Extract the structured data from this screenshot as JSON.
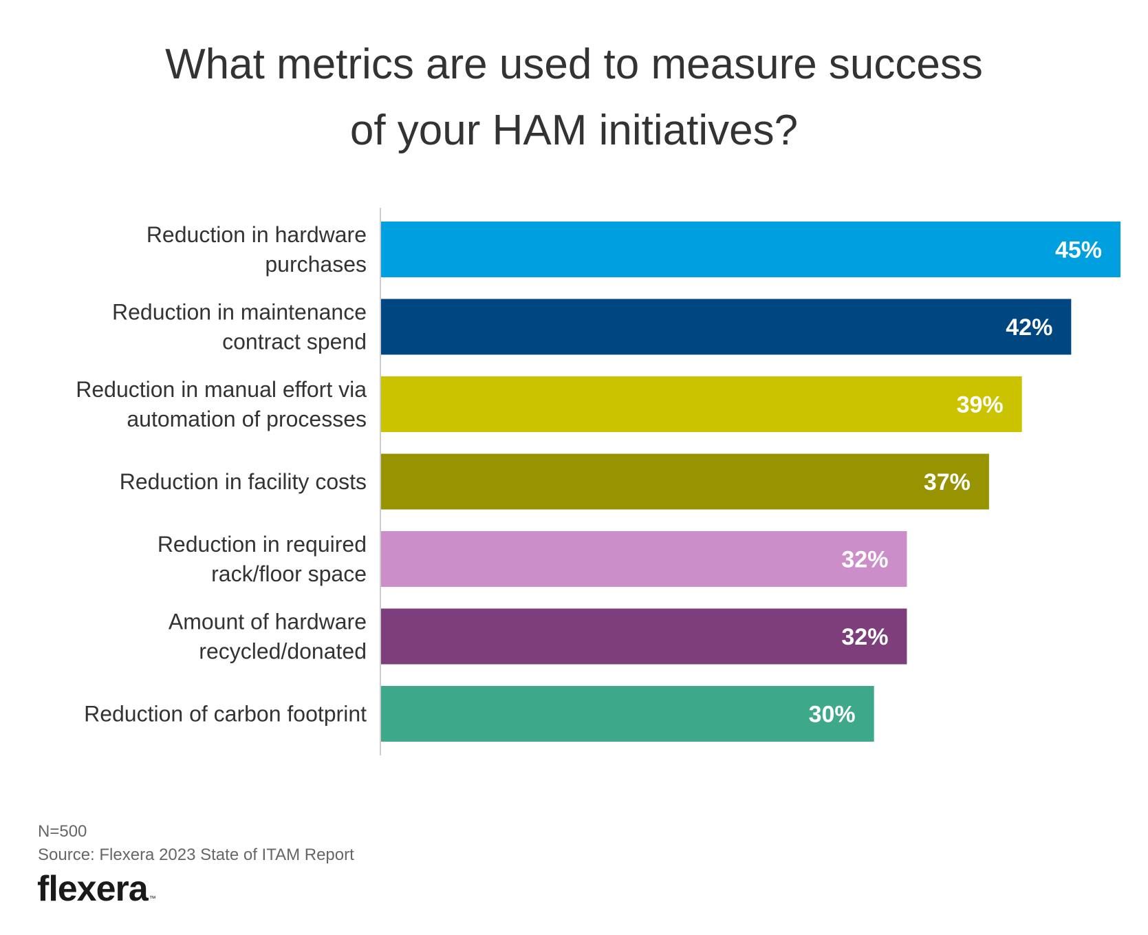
{
  "title_lines": [
    "What metrics are used to measure success",
    "of your HAM initiatives?"
  ],
  "chart_data": {
    "type": "bar",
    "orientation": "horizontal",
    "categories": [
      [
        "Reduction in hardware",
        "purchases"
      ],
      [
        "Reduction in maintenance",
        "contract spend"
      ],
      [
        "Reduction in manual effort via",
        "automation of processes"
      ],
      [
        "Reduction in facility costs"
      ],
      [
        "Reduction in required",
        "rack/floor space"
      ],
      [
        "Amount of hardware",
        "recycled/donated"
      ],
      [
        "Reduction of carbon footprint"
      ]
    ],
    "values": [
      45,
      42,
      39,
      37,
      32,
      32,
      30
    ],
    "value_labels": [
      "45%",
      "42%",
      "39%",
      "37%",
      "32%",
      "32%",
      "30%"
    ],
    "colors": [
      "#009fe0",
      "#004782",
      "#cbc300",
      "#989300",
      "#cc8ec9",
      "#7e3e7b",
      "#3ea88a"
    ],
    "xlim": [
      0,
      45
    ],
    "grid": false,
    "legend": "none"
  },
  "footer": {
    "n_note": "N=500",
    "source": "Source: Flexera 2023 State of ITAM Report"
  },
  "logo": {
    "text": "flexera",
    "tm": "™"
  }
}
